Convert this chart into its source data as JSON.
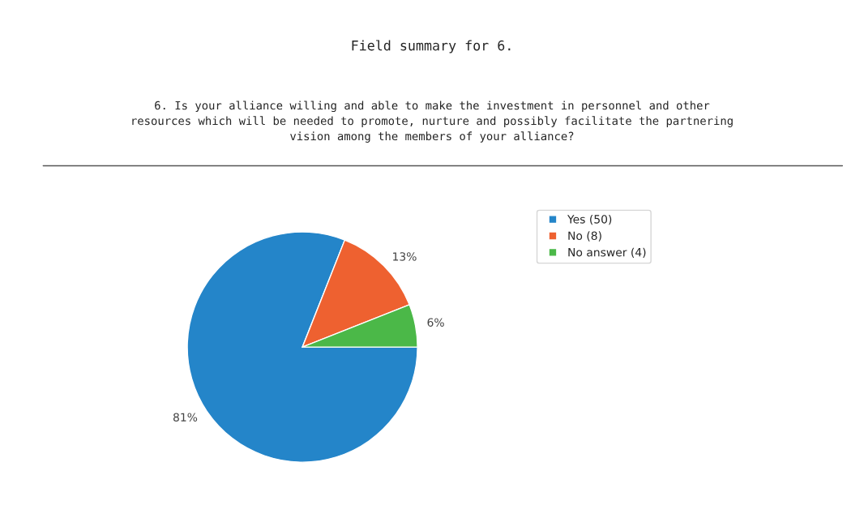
{
  "chart_data": {
    "type": "pie",
    "title": "Field summary for 6.",
    "subtitle": "6. Is your alliance willing and able to make the investment in personnel and other\nresources which will be needed to promote, nurture and possibly facilitate the partnering\nvision among the members of your alliance?",
    "categories": [
      "Yes (50)",
      "No (8)",
      "No answer (4)"
    ],
    "values": [
      81,
      13,
      6
    ],
    "colors": [
      "#2485c9",
      "#ee6130",
      "#4bb848"
    ],
    "value_labels": [
      "81%",
      "13%",
      "6%"
    ],
    "legend": "top right"
  }
}
